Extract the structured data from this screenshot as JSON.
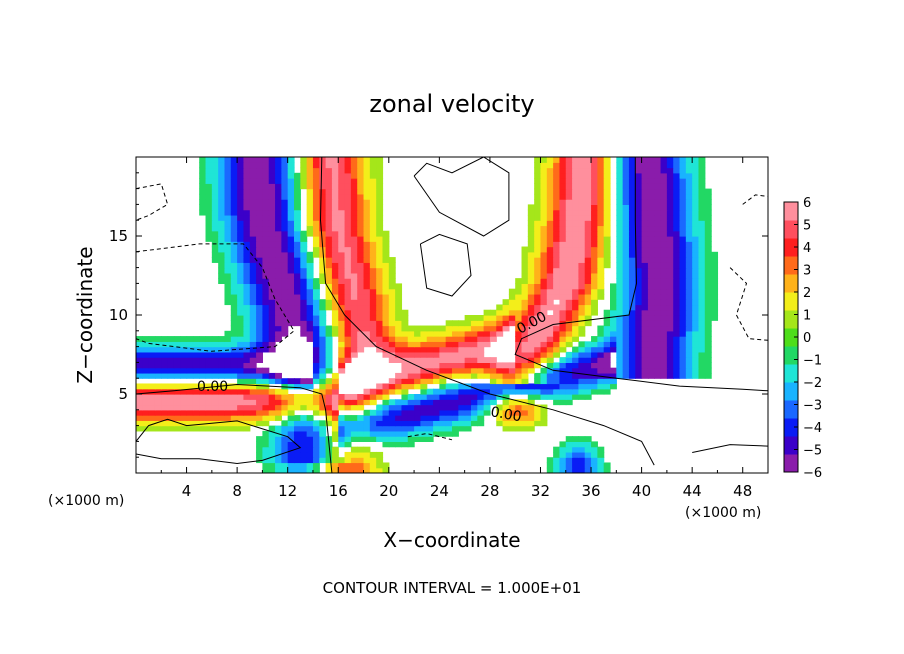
{
  "chart_data": {
    "type": "heatmap",
    "title": "zonal velocity",
    "xlabel": "X−coordinate",
    "ylabel": "Z−coordinate",
    "x_unit_label": "(×1000 m)",
    "z_unit_label": "(×1000 m)",
    "xlim": [
      0,
      50
    ],
    "ylim": [
      0,
      20
    ],
    "x_ticks": [
      "4",
      "8",
      "12",
      "16",
      "20",
      "24",
      "28",
      "32",
      "36",
      "40",
      "44",
      "48"
    ],
    "y_ticks": [
      "5",
      "10",
      "15"
    ],
    "colorbar": {
      "ticks": [
        "6",
        "5",
        "4",
        "3",
        "2",
        "1",
        "0",
        "−1",
        "−2",
        "−3",
        "−4",
        "−5",
        "−6"
      ],
      "range": [
        -6,
        6
      ],
      "colors": [
        "#8a1cab",
        "#3b00c9",
        "#0a1cf5",
        "#1a68ff",
        "#19b3ff",
        "#1fe5d6",
        "#22d864",
        "#4ede1a",
        "#a5e61a",
        "#f3ee1a",
        "#ffb21a",
        "#ff6a1a",
        "#ff1f1f",
        "#ff4f5e",
        "#ff8f9d"
      ],
      "clip_outside_color": "#ffffff"
    },
    "contour_labels": [
      "0.00",
      "0.00",
      "0.00"
    ],
    "footer": "CONTOUR INTERVAL = 1.000E+01",
    "grid": false
  }
}
